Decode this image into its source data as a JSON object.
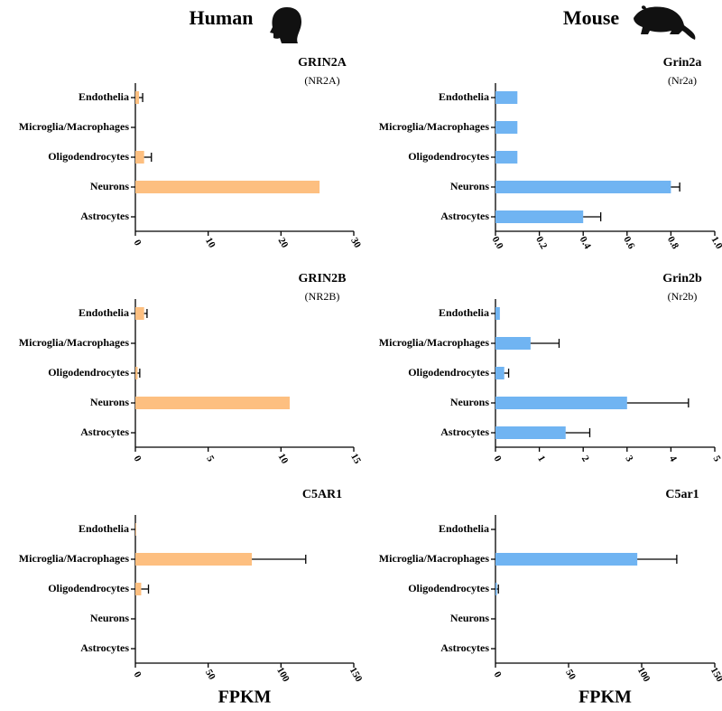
{
  "column_titles": [
    "Human",
    "Mouse"
  ],
  "chart_data": [
    {
      "type": "bar",
      "title": "GRIN2A",
      "subtitle": "(NR2A)",
      "color": "#fdbf80",
      "categories": [
        "Endothelia",
        "Microglia/Macrophages",
        "Oligodendrocytes",
        "Neurons",
        "Astrocytes"
      ],
      "values": [
        0.5,
        0,
        1.2,
        25.3,
        0
      ],
      "errors": [
        0.5,
        null,
        1.0,
        null,
        null
      ],
      "xlim": [
        0,
        30
      ],
      "xticks": [
        0,
        10,
        20,
        30
      ]
    },
    {
      "type": "bar",
      "title": "Grin2a",
      "subtitle": "(Nr2a)",
      "color": "#70b4f2",
      "categories": [
        "Endothelia",
        "Microglia/Macrophages",
        "Oligodendrocytes",
        "Neurons",
        "Astrocytes"
      ],
      "values": [
        0.1,
        0.1,
        0.1,
        0.8,
        0.4
      ],
      "errors": [
        null,
        null,
        null,
        0.04,
        0.08
      ],
      "xlim": [
        0,
        1
      ],
      "xticks": [
        {
          "value": 0,
          "label": "0.0"
        },
        0.2,
        0.4,
        0.6,
        0.8,
        {
          "value": 1,
          "label": "1.0"
        }
      ]
    },
    {
      "type": "bar",
      "title": "GRIN2B",
      "subtitle": "(NR2B)",
      "color": "#fdbf80",
      "categories": [
        "Endothelia",
        "Microglia/Macrophages",
        "Oligodendrocytes",
        "Neurons",
        "Astrocytes"
      ],
      "values": [
        0.6,
        0,
        0.15,
        10.6,
        0
      ],
      "errors": [
        0.2,
        null,
        0.15,
        null,
        null
      ],
      "xlim": [
        0,
        15
      ],
      "xticks": [
        0,
        5,
        10,
        15
      ]
    },
    {
      "type": "bar",
      "title": "Grin2b",
      "subtitle": "(Nr2b)",
      "color": "#70b4f2",
      "categories": [
        "Endothelia",
        "Microglia/Macrophages",
        "Oligodendrocytes",
        "Neurons",
        "Astrocytes"
      ],
      "values": [
        0.1,
        0.8,
        0.2,
        3.0,
        1.6
      ],
      "errors": [
        null,
        0.65,
        0.1,
        1.4,
        0.55
      ],
      "xlim": [
        0,
        5
      ],
      "xticks": [
        0,
        1,
        2,
        3,
        4,
        5
      ]
    },
    {
      "type": "bar",
      "title": "C5AR1",
      "color": "#fdbf80",
      "xlabel": "FPKM",
      "categories": [
        "Endothelia",
        "Microglia/Macrophages",
        "Oligodendrocytes",
        "Neurons",
        "Astrocytes"
      ],
      "values": [
        0.5,
        80,
        4,
        0,
        0
      ],
      "errors": [
        null,
        37,
        5,
        null,
        null
      ],
      "xlim": [
        0,
        150
      ],
      "xticks": [
        0,
        50,
        100,
        150
      ]
    },
    {
      "type": "bar",
      "title": "C5ar1",
      "color": "#70b4f2",
      "xlabel": "FPKM",
      "categories": [
        "Endothelia",
        "Microglia/Macrophages",
        "Oligodendrocytes",
        "Neurons",
        "Astrocytes"
      ],
      "values": [
        0,
        97,
        1,
        0,
        0
      ],
      "errors": [
        null,
        27,
        1,
        null,
        null
      ],
      "xlim": [
        0,
        150
      ],
      "xticks": [
        0,
        50,
        100,
        150
      ]
    }
  ]
}
